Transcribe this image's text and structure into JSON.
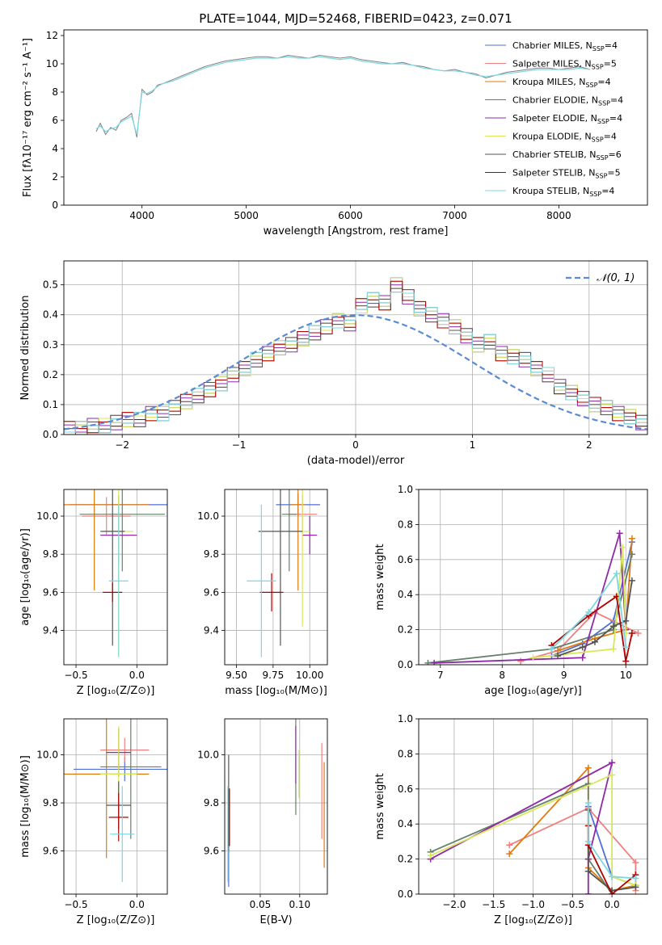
{
  "figure": {
    "title": "PLATE=1044, MJD=52468, FIBERID=0423, z=0.071"
  },
  "models": [
    {
      "name": "Chabrier MILES",
      "nssp": "4",
      "color": "#4f6fd6"
    },
    {
      "name": "Salpeter MILES",
      "nssp": "5",
      "color": "#f08080"
    },
    {
      "name": "Kroupa MILES",
      "nssp": "4",
      "color": "#e07b10"
    },
    {
      "name": "Chabrier ELODIE",
      "nssp": "4",
      "color": "#66806a"
    },
    {
      "name": "Salpeter ELODIE",
      "nssp": "4",
      "color": "#8e2aa8"
    },
    {
      "name": "Kroupa ELODIE",
      "nssp": "4",
      "color": "#d9e85a"
    },
    {
      "name": "Chabrier STELIB",
      "nssp": "6",
      "color": "#555555"
    },
    {
      "name": "Salpeter STELIB",
      "nssp": "5",
      "color": "#b00000"
    },
    {
      "name": "Kroupa STELIB",
      "nssp": "4",
      "color": "#7fd6e0"
    }
  ],
  "chart_data": [
    {
      "id": "spectrum",
      "type": "line",
      "title": "PLATE=1044, MJD=52468, FIBERID=0423, z=0.071",
      "xlabel": "wavelength [Angstrom, rest frame]",
      "ylabel": "Flux [fλ10⁻¹⁷ erg cm⁻² s⁻¹ A⁻¹]",
      "xlim": [
        3250,
        8850
      ],
      "ylim": [
        0,
        12.4
      ],
      "grid": false,
      "xticks": [
        "4000",
        "5000",
        "6000",
        "7000",
        "8000"
      ],
      "yticks": [
        "0",
        "2",
        "4",
        "6",
        "8",
        "10",
        "12"
      ],
      "legend_position": "right",
      "legend": [
        "Chabrier MILES, N",
        "Salpeter MILES, N",
        "Kroupa MILES, N",
        "Chabrier ELODIE, N",
        "Salpeter ELODIE, N",
        "Kroupa ELODIE, N",
        "Chabrier STELIB, N",
        "Salpeter STELIB, N",
        "Kroupa STELIB, N"
      ],
      "legend_sub": "SSP",
      "legend_vals": [
        "=4",
        "=5",
        "=4",
        "=4",
        "=4",
        "=4",
        "=6",
        "=5",
        "=4"
      ],
      "data_curve": {
        "name": "data",
        "color": "#808080",
        "x": [
          3560,
          3600,
          3650,
          3700,
          3750,
          3800,
          3850,
          3900,
          3950,
          4000,
          4050,
          4100,
          4150,
          4200,
          4300,
          4400,
          4500,
          4600,
          4700,
          4800,
          4900,
          5000,
          5100,
          5200,
          5300,
          5400,
          5500,
          5600,
          5700,
          5800,
          5900,
          6000,
          6100,
          6200,
          6300,
          6400,
          6500,
          6600,
          6700,
          6800,
          6900,
          7000,
          7100,
          7200,
          7300,
          7400,
          7500,
          7600,
          7700,
          7800,
          7900,
          8000,
          8100,
          8200,
          8300
        ],
        "y": [
          5.2,
          5.8,
          5.0,
          5.5,
          5.3,
          6.0,
          6.2,
          6.5,
          4.8,
          8.2,
          7.8,
          8.0,
          8.5,
          8.6,
          8.9,
          9.2,
          9.5,
          9.8,
          10.0,
          10.2,
          10.3,
          10.4,
          10.5,
          10.5,
          10.4,
          10.6,
          10.5,
          10.4,
          10.6,
          10.5,
          10.4,
          10.5,
          10.3,
          10.2,
          10.1,
          10.0,
          10.1,
          9.9,
          9.8,
          9.6,
          9.5,
          9.6,
          9.4,
          9.3,
          9.0,
          9.2,
          9.4,
          9.5,
          9.6,
          9.7,
          9.7,
          9.6,
          9.7,
          9.8,
          9.6
        ]
      },
      "model_curve": {
        "name": "Kroupa STELIB",
        "color": "#7fd6e0",
        "x": [
          3560,
          3600,
          3650,
          3700,
          3750,
          3800,
          3850,
          3900,
          3950,
          4000,
          4050,
          4100,
          4150,
          4200,
          4300,
          4400,
          4500,
          4600,
          4700,
          4800,
          4900,
          5000,
          5100,
          5200,
          5300,
          5400,
          5500,
          5600,
          5700,
          5800,
          5900,
          6000,
          6100,
          6200,
          6300,
          6400,
          6500,
          6600,
          6700,
          6800,
          6900,
          7000,
          7100,
          7200,
          7300,
          7400,
          7500,
          7600,
          7700,
          7800,
          7900,
          8000,
          8100,
          8200,
          8300
        ],
        "y": [
          5.4,
          5.6,
          5.2,
          5.4,
          5.5,
          5.9,
          6.1,
          6.3,
          5.0,
          8.0,
          7.9,
          8.1,
          8.4,
          8.6,
          8.8,
          9.1,
          9.4,
          9.7,
          9.9,
          10.1,
          10.2,
          10.3,
          10.4,
          10.4,
          10.4,
          10.5,
          10.4,
          10.4,
          10.5,
          10.4,
          10.3,
          10.4,
          10.2,
          10.1,
          10.0,
          10.0,
          10.0,
          9.9,
          9.7,
          9.6,
          9.5,
          9.5,
          9.4,
          9.2,
          9.1,
          9.2,
          9.3,
          9.4,
          9.5,
          9.6,
          9.6,
          9.6,
          9.6,
          9.7,
          9.6
        ]
      }
    },
    {
      "id": "residuals",
      "type": "line",
      "xlabel": "(data-model)/error",
      "ylabel": "Normed distribution",
      "xlim": [
        -2.5,
        2.5
      ],
      "ylim": [
        0,
        0.58
      ],
      "grid": true,
      "xticks": [
        "−2",
        "−1",
        "0",
        "1",
        "2"
      ],
      "yticks": [
        "0.0",
        "0.1",
        "0.2",
        "0.3",
        "0.4",
        "0.5"
      ],
      "legend_position": "top-right",
      "legend": [
        "𝒩(0, 1)"
      ],
      "gaussian": {
        "name": "𝒩(0, 1)",
        "color": "#5b8bd4",
        "mean": 0,
        "sigma": 1
      },
      "histogram": {
        "bin_width": 0.1,
        "start": -2.5,
        "values": [
          0.02,
          0.02,
          0.03,
          0.03,
          0.04,
          0.05,
          0.05,
          0.07,
          0.07,
          0.09,
          0.11,
          0.13,
          0.15,
          0.17,
          0.2,
          0.22,
          0.25,
          0.27,
          0.29,
          0.3,
          0.32,
          0.34,
          0.36,
          0.38,
          0.37,
          0.43,
          0.45,
          0.44,
          0.5,
          0.46,
          0.42,
          0.4,
          0.38,
          0.36,
          0.33,
          0.3,
          0.31,
          0.27,
          0.26,
          0.25,
          0.22,
          0.2,
          0.16,
          0.14,
          0.12,
          0.1,
          0.09,
          0.07,
          0.06,
          0.04,
          0.03
        ]
      }
    },
    {
      "id": "age-vs-Z",
      "type": "scatter",
      "xlabel": "Z [log₁₀(Z/Z⊙)]",
      "ylabel": "age  [log₁₀(age/yr)]",
      "xlim": [
        -0.6,
        0.25
      ],
      "ylim": [
        9.22,
        10.14
      ],
      "grid": true,
      "xticks": [
        "−0.5",
        "0.0"
      ],
      "yticks": [
        "9.4",
        "9.6",
        "9.8",
        "10.0"
      ],
      "points": [
        {
          "model": "Chabrier MILES",
          "x": -0.15,
          "y": 10.06,
          "xerr": 0.4,
          "yerr": 0.05
        },
        {
          "model": "Salpeter MILES",
          "x": -0.25,
          "y": 10.0,
          "xerr": 0.2,
          "yerr": 0.1
        },
        {
          "model": "Kroupa MILES",
          "x": -0.35,
          "y": 10.06,
          "xerr": 0.45,
          "yerr": 0.45
        },
        {
          "model": "Chabrier ELODIE",
          "x": -0.12,
          "y": 10.01,
          "xerr": 0.35,
          "yerr": 0.3
        },
        {
          "model": "Salpeter ELODIE",
          "x": -0.15,
          "y": 9.9,
          "xerr": 0.15,
          "yerr": 0.15
        },
        {
          "model": "Kroupa ELODIE",
          "x": -0.15,
          "y": 9.92,
          "xerr": 0.12,
          "yerr": 0.65
        },
        {
          "model": "Chabrier STELIB",
          "x": -0.2,
          "y": 9.92,
          "xerr": 0.1,
          "yerr": 0.6
        },
        {
          "model": "Salpeter STELIB",
          "x": -0.2,
          "y": 9.6,
          "xerr": 0.08,
          "yerr": 0.05
        },
        {
          "model": "Kroupa STELIB",
          "x": -0.15,
          "y": 9.66,
          "xerr": 0.08,
          "yerr": 0.4
        }
      ]
    },
    {
      "id": "age-vs-mass",
      "type": "scatter",
      "xlabel": "mass [log₁₀(M/M⊙)]",
      "ylabel": "",
      "xlim": [
        9.42,
        10.12
      ],
      "ylim": [
        9.22,
        10.14
      ],
      "grid": true,
      "xticks": [
        "9.50",
        "9.75",
        "10.00"
      ],
      "yticks": [
        "9.4",
        "9.6",
        "9.8",
        "10.0"
      ],
      "points": [
        {
          "model": "Chabrier MILES",
          "x": 9.92,
          "y": 10.06,
          "xerr": 0.15,
          "yerr": 0.06
        },
        {
          "model": "Salpeter MILES",
          "x": 9.95,
          "y": 10.01,
          "xerr": 0.1,
          "yerr": 0.1
        },
        {
          "model": "Kroupa MILES",
          "x": 9.92,
          "y": 10.06,
          "xerr": 0.05,
          "yerr": 0.45
        },
        {
          "model": "Chabrier ELODIE",
          "x": 9.86,
          "y": 10.01,
          "xerr": 0.05,
          "yerr": 0.3
        },
        {
          "model": "Salpeter ELODIE",
          "x": 10.0,
          "y": 9.9,
          "xerr": 0.05,
          "yerr": 0.1
        },
        {
          "model": "Kroupa ELODIE",
          "x": 9.95,
          "y": 9.92,
          "xerr": 0.05,
          "yerr": 0.5
        },
        {
          "model": "Chabrier STELIB",
          "x": 9.8,
          "y": 9.92,
          "xerr": 0.15,
          "yerr": 0.6
        },
        {
          "model": "Salpeter STELIB",
          "x": 9.74,
          "y": 9.6,
          "xerr": 0.08,
          "yerr": 0.1
        },
        {
          "model": "Kroupa STELIB",
          "x": 9.67,
          "y": 9.66,
          "xerr": 0.1,
          "yerr": 0.4
        }
      ]
    },
    {
      "id": "weight-vs-age",
      "type": "line",
      "xlabel": "age  [log₁₀(age/yr)]",
      "ylabel": "mass weight",
      "xlim": [
        6.65,
        10.35
      ],
      "ylim": [
        0,
        1.0
      ],
      "grid": true,
      "xticks": [
        "7",
        "8",
        "9",
        "10"
      ],
      "yticks": [
        "0.0",
        "0.2",
        "0.4",
        "0.6",
        "0.8",
        "1.0"
      ],
      "series": [
        {
          "model": "Chabrier MILES",
          "x": [
            8.8,
            9.3,
            9.8,
            10.1
          ],
          "y": [
            0.05,
            0.12,
            0.25,
            0.7
          ]
        },
        {
          "model": "Salpeter MILES",
          "x": [
            8.3,
            8.9,
            9.5,
            10.2
          ],
          "y": [
            0.02,
            0.08,
            0.3,
            0.18
          ]
        },
        {
          "model": "Kroupa MILES",
          "x": [
            8.9,
            9.5,
            10.0,
            10.1
          ],
          "y": [
            0.08,
            0.15,
            0.2,
            0.72
          ]
        },
        {
          "model": "Chabrier ELODIE",
          "x": [
            6.8,
            8.8,
            9.8,
            10.1
          ],
          "y": [
            0.01,
            0.09,
            0.2,
            0.63
          ]
        },
        {
          "model": "Salpeter ELODIE",
          "x": [
            6.9,
            9.3,
            9.9,
            10.0
          ],
          "y": [
            0.01,
            0.04,
            0.75,
            0.2
          ]
        },
        {
          "model": "Kroupa ELODIE",
          "x": [
            8.5,
            9.8,
            9.95,
            10.0
          ],
          "y": [
            0.04,
            0.09,
            0.67,
            0.18
          ]
        },
        {
          "model": "Chabrier STELIB",
          "x": [
            8.9,
            9.3,
            9.5,
            9.8,
            10.0,
            10.1
          ],
          "y": [
            0.05,
            0.1,
            0.13,
            0.22,
            0.25,
            0.48
          ]
        },
        {
          "model": "Salpeter STELIB",
          "x": [
            8.8,
            9.4,
            9.85,
            10.0,
            10.1
          ],
          "y": [
            0.11,
            0.28,
            0.39,
            0.02,
            0.18
          ]
        },
        {
          "model": "Kroupa STELIB",
          "x": [
            8.8,
            9.4,
            9.85,
            10.0
          ],
          "y": [
            0.09,
            0.3,
            0.52,
            0.1
          ]
        }
      ]
    },
    {
      "id": "mass-vs-Z",
      "type": "scatter",
      "xlabel": "Z [log₁₀(Z/Z⊙)]",
      "ylabel": "mass [log₁₀(M/M⊙)]",
      "xlim": [
        -0.6,
        0.25
      ],
      "ylim": [
        9.42,
        10.15
      ],
      "grid": true,
      "xticks": [
        "−0.5",
        "0.0"
      ],
      "yticks": [
        "9.6",
        "9.8",
        "10.0"
      ],
      "points": [
        {
          "model": "Chabrier MILES",
          "x": -0.1,
          "y": 9.94,
          "xerr": 0.42,
          "yerr": 0.05
        },
        {
          "model": "Salpeter MILES",
          "x": -0.1,
          "y": 10.02,
          "xerr": 0.2,
          "yerr": 0.05
        },
        {
          "model": "Kroupa MILES",
          "x": -0.25,
          "y": 9.92,
          "xerr": 0.35,
          "yerr": 0.35
        },
        {
          "model": "Chabrier ELODIE",
          "x": -0.05,
          "y": 9.95,
          "xerr": 0.25,
          "yerr": 0.3
        },
        {
          "model": "Salpeter ELODIE",
          "x": -0.15,
          "y": 10.01,
          "xerr": 0.1,
          "yerr": 0.1
        },
        {
          "model": "Kroupa ELODIE",
          "x": -0.15,
          "y": 9.92,
          "xerr": 0.15,
          "yerr": 0.2
        },
        {
          "model": "Chabrier STELIB",
          "x": -0.15,
          "y": 9.79,
          "xerr": 0.1,
          "yerr": 0.1
        },
        {
          "model": "Salpeter STELIB",
          "x": -0.15,
          "y": 9.74,
          "xerr": 0.08,
          "yerr": 0.1
        },
        {
          "model": "Kroupa STELIB",
          "x": -0.12,
          "y": 9.67,
          "xerr": 0.1,
          "yerr": 0.2
        }
      ]
    },
    {
      "id": "mass-vs-ebv",
      "type": "scatter",
      "xlabel": "E(B-V)",
      "ylabel": "",
      "xlim": [
        0.005,
        0.135
      ],
      "ylim": [
        9.42,
        10.15
      ],
      "grid": true,
      "xticks": [
        "0.05",
        "0.10"
      ],
      "yticks": [
        "9.6",
        "9.8",
        "10.0"
      ],
      "points": [
        {
          "model": "Chabrier MILES",
          "x": 0.01,
          "y": 9.65,
          "xerr": 0.0,
          "yerr": 0.2
        },
        {
          "model": "Salpeter MILES",
          "x": 0.128,
          "y": 9.85,
          "xerr": 0.0,
          "yerr": 0.2
        },
        {
          "model": "Kroupa MILES",
          "x": 0.131,
          "y": 9.75,
          "xerr": 0.0,
          "yerr": 0.22
        },
        {
          "model": "Chabrier ELODIE",
          "x": 0.095,
          "y": 9.95,
          "xerr": 0.0,
          "yerr": 0.2
        },
        {
          "model": "Salpeter ELODIE",
          "x": 0.095,
          "y": 10.0,
          "xerr": 0.0,
          "yerr": 0.12
        },
        {
          "model": "Kroupa ELODIE",
          "x": 0.099,
          "y": 9.92,
          "xerr": 0.0,
          "yerr": 0.1
        },
        {
          "model": "Chabrier STELIB",
          "x": 0.01,
          "y": 9.8,
          "xerr": 0.0,
          "yerr": 0.2
        },
        {
          "model": "Salpeter STELIB",
          "x": 0.011,
          "y": 9.74,
          "xerr": 0.0,
          "yerr": 0.12
        },
        {
          "model": "Kroupa STELIB",
          "x": 0.009,
          "y": 9.67,
          "xerr": 0.0,
          "yerr": 0.2
        }
      ]
    },
    {
      "id": "weight-vs-Z",
      "type": "line",
      "xlabel": "Z [log₁₀(Z/Z⊙)]",
      "ylabel": "mass weight",
      "xlim": [
        -2.45,
        0.45
      ],
      "ylim": [
        0,
        1.0
      ],
      "grid": true,
      "xticks": [
        "−2.0",
        "−1.5",
        "−1.0",
        "−0.5",
        "0.0"
      ],
      "yticks": [
        "0.0",
        "0.2",
        "0.4",
        "0.6",
        "0.8",
        "1.0"
      ],
      "series": [
        {
          "model": "Chabrier MILES",
          "x": [
            -0.3,
            0.0,
            0.3
          ],
          "y": [
            0.5,
            0.1,
            0.05
          ]
        },
        {
          "model": "Salpeter MILES",
          "x": [
            -1.3,
            -0.3,
            0.3,
            0.3
          ],
          "y": [
            0.28,
            0.49,
            0.18,
            0.02
          ]
        },
        {
          "model": "Kroupa MILES",
          "x": [
            -1.3,
            -0.3,
            -0.3,
            0.0,
            0.3
          ],
          "y": [
            0.23,
            0.72,
            0.15,
            0.02,
            0.05
          ]
        },
        {
          "model": "Chabrier ELODIE",
          "x": [
            -2.3,
            -0.3,
            -0.3,
            0.0
          ],
          "y": [
            0.24,
            0.63,
            0.2,
            0.0
          ]
        },
        {
          "model": "Salpeter ELODIE",
          "x": [
            -2.3,
            0.0,
            -0.3,
            -0.3
          ],
          "y": [
            0.2,
            0.75,
            0.2,
            0.0
          ]
        },
        {
          "model": "Kroupa ELODIE",
          "x": [
            -2.3,
            0.0,
            0.0,
            0.3
          ],
          "y": [
            0.22,
            0.68,
            0.1,
            0.05
          ]
        },
        {
          "model": "Chabrier STELIB",
          "x": [
            -0.3,
            -0.3,
            0.0,
            0.3
          ],
          "y": [
            0.48,
            0.13,
            0.02,
            0.04
          ]
        },
        {
          "model": "Salpeter STELIB",
          "x": [
            -0.3,
            -0.3,
            0.0,
            0.3
          ],
          "y": [
            0.39,
            0.28,
            0.0,
            0.11
          ]
        },
        {
          "model": "Kroupa STELIB",
          "x": [
            -0.3,
            -0.3,
            0.0,
            0.3
          ],
          "y": [
            0.52,
            0.3,
            0.1,
            0.09
          ]
        }
      ]
    }
  ]
}
